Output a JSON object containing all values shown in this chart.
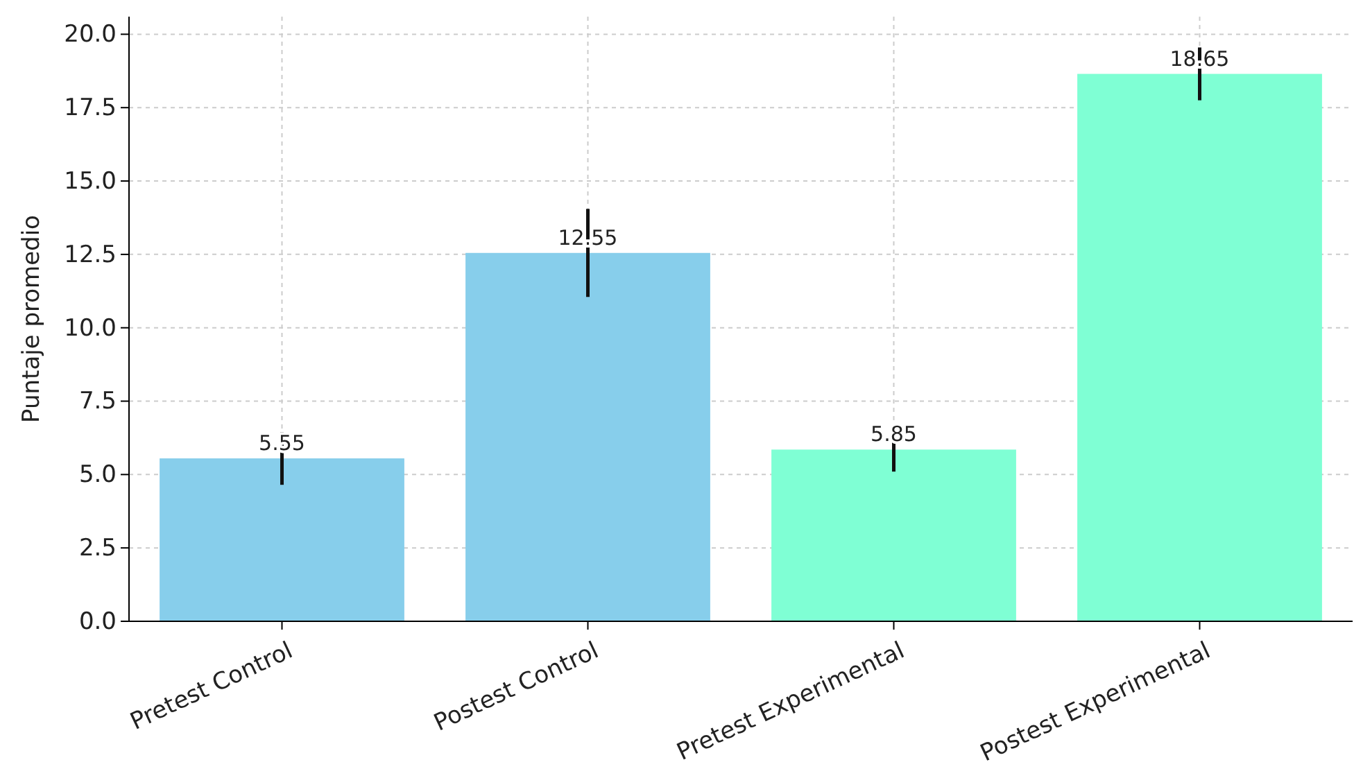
{
  "chart_data": {
    "type": "bar",
    "ylabel": "Puntaje promedio",
    "categories": [
      "Pretest Control",
      "Postest Control",
      "Pretest Experimental",
      "Postest Experimental"
    ],
    "values": [
      5.55,
      12.55,
      5.85,
      18.65
    ],
    "errors": [
      0.9,
      1.5,
      0.75,
      0.9
    ],
    "colors": [
      "#87ceeb",
      "#87ceeb",
      "#7fffd4",
      "#7fffd4"
    ],
    "data_labels": true,
    "ylim": [
      0,
      20.6
    ],
    "yticks": [
      {
        "value": 0,
        "label": "0.0"
      },
      {
        "value": 2.5,
        "label": "2.5"
      },
      {
        "value": 5,
        "label": "5.0"
      },
      {
        "value": 7.5,
        "label": "7.5"
      },
      {
        "value": 10,
        "label": "10.0"
      },
      {
        "value": 12.5,
        "label": "12.5"
      },
      {
        "value": 15,
        "label": "15.0"
      },
      {
        "value": 17.5,
        "label": "17.5"
      },
      {
        "value": 20,
        "label": "20.0"
      }
    ],
    "grid": true
  }
}
